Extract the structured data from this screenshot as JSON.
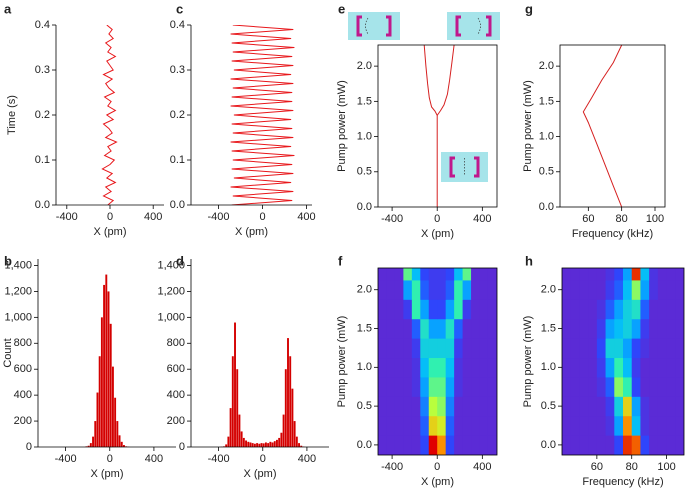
{
  "chart_data": [
    {
      "type": "line",
      "label": "a",
      "ylabel": "Time (s)",
      "xlabel": "X (pm)",
      "xlim": [
        -500,
        500
      ],
      "xticks": [
        -400,
        0,
        400
      ],
      "ylim": [
        0,
        0.4
      ],
      "yticks": [
        {
          "value": 0,
          "label": "0.0"
        },
        0.1,
        0.2,
        0.3,
        0.4
      ],
      "box": false,
      "series": [
        {
          "color": "#e8171b",
          "x": [
            -20,
            30,
            -60,
            10,
            -40,
            50,
            -30,
            20,
            -70,
            0,
            40,
            -50,
            10,
            -20,
            60,
            -40,
            20,
            -10,
            -60,
            30,
            -30,
            50,
            -20,
            10,
            -50,
            40,
            -10,
            -40,
            20,
            -60,
            30,
            0,
            -30,
            50,
            -20,
            10,
            -40,
            30,
            -10,
            20,
            -30
          ],
          "y": [
            0,
            0.01,
            0.02,
            0.03,
            0.04,
            0.05,
            0.06,
            0.07,
            0.08,
            0.09,
            0.1,
            0.11,
            0.12,
            0.13,
            0.14,
            0.15,
            0.16,
            0.17,
            0.18,
            0.19,
            0.2,
            0.21,
            0.22,
            0.23,
            0.24,
            0.25,
            0.26,
            0.27,
            0.28,
            0.29,
            0.3,
            0.31,
            0.32,
            0.33,
            0.34,
            0.35,
            0.36,
            0.37,
            0.38,
            0.39,
            0.4
          ]
        }
      ]
    },
    {
      "type": "histogram",
      "label": "b",
      "ylabel": "Count",
      "xlabel": "X (pm)",
      "xlim": [
        -650,
        600
      ],
      "xticks": [
        -400,
        0,
        400
      ],
      "ylim": [
        0,
        1450
      ],
      "yticks": [
        0,
        200,
        400,
        600,
        800,
        {
          "value": 1000,
          "label": "1,000"
        },
        {
          "value": 1200,
          "label": "1,200"
        },
        {
          "value": 1400,
          "label": "1,400"
        }
      ],
      "box": false,
      "color": "#d40000",
      "bins": [
        -220,
        -200,
        -180,
        -160,
        -140,
        -120,
        -100,
        -80,
        -60,
        -40,
        -20,
        0,
        20,
        40,
        60,
        80,
        100,
        120,
        140,
        160,
        180
      ],
      "values": [
        5,
        10,
        30,
        80,
        200,
        420,
        700,
        1000,
        1250,
        1330,
        1200,
        950,
        620,
        380,
        200,
        90,
        40,
        15,
        5,
        2
      ]
    },
    {
      "type": "line",
      "label": "c",
      "xlabel": "X (pm)",
      "xlim": [
        -650,
        450
      ],
      "xticks": [
        -400,
        0,
        400
      ],
      "ylim": [
        0,
        0.4
      ],
      "yticks": [
        {
          "value": 0,
          "label": "0.0"
        },
        0.1,
        0.2,
        0.3,
        0.4
      ],
      "box": false,
      "series": [
        {
          "color": "#e8171b",
          "x": [
            -280,
            270,
            -270,
            280,
            -290,
            260,
            -260,
            280,
            -280,
            270,
            -270,
            290,
            -280,
            260,
            -290,
            280,
            -270,
            270,
            -280,
            260,
            -260,
            280,
            -290,
            270,
            -280,
            270,
            -270,
            280,
            -290,
            260,
            -260,
            280,
            -280,
            270,
            -270,
            290,
            -280,
            260,
            -290,
            280,
            -270
          ],
          "y": [
            0,
            0.01,
            0.02,
            0.03,
            0.04,
            0.05,
            0.06,
            0.07,
            0.08,
            0.09,
            0.1,
            0.11,
            0.12,
            0.13,
            0.14,
            0.15,
            0.16,
            0.17,
            0.18,
            0.19,
            0.2,
            0.21,
            0.22,
            0.23,
            0.24,
            0.25,
            0.26,
            0.27,
            0.28,
            0.29,
            0.3,
            0.31,
            0.32,
            0.33,
            0.34,
            0.35,
            0.36,
            0.37,
            0.38,
            0.39,
            0.4
          ]
        }
      ]
    },
    {
      "type": "histogram",
      "label": "d",
      "xlabel": "X (pm)",
      "xlim": [
        -650,
        600
      ],
      "xticks": [
        -400,
        0,
        400
      ],
      "ylim": [
        0,
        1450
      ],
      "yticks": [
        0,
        200,
        400,
        600,
        800,
        {
          "value": 1000,
          "label": "1,000"
        },
        {
          "value": 1200,
          "label": "1,200"
        },
        {
          "value": 1400,
          "label": "1,400"
        }
      ],
      "box": false,
      "color": "#d40000",
      "bins": [
        -400,
        -380,
        -360,
        -340,
        -320,
        -300,
        -280,
        -260,
        -240,
        -220,
        -200,
        -180,
        -160,
        -140,
        -120,
        -100,
        -80,
        -60,
        -40,
        -20,
        0,
        20,
        40,
        60,
        80,
        100,
        120,
        140,
        160,
        180,
        200,
        220,
        240,
        260,
        280,
        300,
        320,
        340,
        360,
        380,
        400
      ],
      "values": [
        0,
        2,
        5,
        20,
        80,
        300,
        700,
        960,
        600,
        250,
        120,
        70,
        50,
        40,
        35,
        30,
        25,
        30,
        25,
        30,
        28,
        35,
        30,
        40,
        35,
        45,
        55,
        70,
        110,
        250,
        600,
        840,
        700,
        450,
        200,
        80,
        30,
        10,
        3,
        0
      ]
    },
    {
      "type": "line",
      "label": "e",
      "ylabel": "Pump power (mW)",
      "xlabel": "X (pm)",
      "xlim": [
        -525,
        530
      ],
      "xticks": [
        -400,
        0,
        400
      ],
      "ylim": [
        0,
        2.3
      ],
      "yticks": [
        {
          "value": 0,
          "label": "0.0"
        },
        0.5,
        {
          "value": 1,
          "label": "1.0"
        },
        1.5,
        {
          "value": 2,
          "label": "2.0"
        }
      ],
      "box": true,
      "series": [
        {
          "color": "#d62020",
          "x": [
            0,
            0,
            -20,
            -50,
            -70,
            -85,
            -100,
            -115
          ],
          "y": [
            0,
            1.3,
            1.36,
            1.42,
            1.55,
            1.75,
            2.0,
            2.3
          ]
        },
        {
          "color": "#d62020",
          "x": [
            0,
            30,
            60,
            90,
            110,
            130,
            150
          ],
          "y": [
            1.3,
            1.37,
            1.45,
            1.6,
            1.8,
            2.05,
            2.3
          ]
        }
      ]
    },
    {
      "type": "heatmap",
      "label": "f",
      "ylabel": "Pump power (mW)",
      "xlabel": "X (pm)",
      "xlim": [
        -525,
        530
      ],
      "xticks": [
        -400,
        0,
        400
      ],
      "ylim": [
        -0.13,
        2.28
      ],
      "yticks": [
        {
          "value": 0,
          "label": "0.0"
        },
        0.5,
        {
          "value": 1,
          "label": "1.0"
        },
        1.5,
        {
          "value": 2,
          "label": "2.0"
        }
      ],
      "box": true,
      "colormap": [
        "#5b2bd6",
        "#2a48ff",
        "#00b8ff",
        "#30f0b0",
        "#c8ff30",
        "#ffa000",
        "#e00000"
      ],
      "zlim": [
        0,
        1
      ],
      "x": [
        -562.5,
        -487.5,
        -412.5,
        -337.5,
        -262.5,
        -187.5,
        -112.5,
        -37.5,
        37.5,
        112.5,
        187.5,
        262.5,
        337.5,
        412.5,
        487.5,
        562.5
      ],
      "y": [
        0,
        0.25,
        0.5,
        0.75,
        1.0,
        1.25,
        1.5,
        1.75,
        2.0,
        2.25
      ],
      "z": [
        [
          0,
          0,
          0,
          0,
          0,
          0,
          0.15,
          1.0,
          0.85,
          0.15,
          0,
          0,
          0,
          0,
          0,
          0
        ],
        [
          0,
          0,
          0,
          0,
          0,
          0,
          0.2,
          0.75,
          0.7,
          0.2,
          0,
          0,
          0,
          0,
          0,
          0
        ],
        [
          0,
          0,
          0,
          0,
          0,
          0,
          0.25,
          0.65,
          0.6,
          0.25,
          0,
          0,
          0,
          0,
          0,
          0
        ],
        [
          0,
          0,
          0,
          0,
          0,
          0.05,
          0.3,
          0.55,
          0.55,
          0.3,
          0.05,
          0,
          0,
          0,
          0,
          0
        ],
        [
          0,
          0,
          0,
          0,
          0,
          0.05,
          0.35,
          0.5,
          0.5,
          0.35,
          0.05,
          0,
          0,
          0,
          0,
          0
        ],
        [
          0,
          0,
          0,
          0,
          0,
          0.1,
          0.4,
          0.4,
          0.4,
          0.4,
          0.1,
          0,
          0,
          0,
          0,
          0
        ],
        [
          0,
          0,
          0,
          0,
          0,
          0.2,
          0.45,
          0.3,
          0.3,
          0.45,
          0.2,
          0,
          0,
          0,
          0,
          0
        ],
        [
          0,
          0,
          0,
          0,
          0.1,
          0.5,
          0.3,
          0.15,
          0.15,
          0.3,
          0.5,
          0.1,
          0,
          0,
          0,
          0
        ],
        [
          0,
          0,
          0,
          0,
          0.3,
          0.5,
          0.2,
          0.1,
          0.1,
          0.2,
          0.5,
          0.3,
          0,
          0,
          0,
          0
        ],
        [
          0,
          0,
          0,
          0,
          0.55,
          0.35,
          0.15,
          0.1,
          0.1,
          0.15,
          0.35,
          0.55,
          0,
          0,
          0,
          0
        ]
      ]
    },
    {
      "type": "line",
      "label": "g",
      "ylabel": "Pump power (mW)",
      "xlabel": "Frequency (kHz)",
      "xlim": [
        43,
        106
      ],
      "xticks": [
        60,
        80,
        100
      ],
      "ylim": [
        0,
        2.3
      ],
      "yticks": [
        {
          "value": 0,
          "label": "0.0"
        },
        0.5,
        {
          "value": 1,
          "label": "1.0"
        },
        1.5,
        {
          "value": 2,
          "label": "2.0"
        }
      ],
      "box": true,
      "series": [
        {
          "color": "#d62020",
          "x": [
            80,
            75,
            70,
            65,
            60,
            57,
            62,
            68,
            75,
            80
          ],
          "y": [
            0,
            0.3,
            0.6,
            0.9,
            1.2,
            1.35,
            1.55,
            1.8,
            2.05,
            2.3
          ]
        }
      ]
    },
    {
      "type": "heatmap",
      "label": "h",
      "ylabel": "Pump power (mW)",
      "xlabel": "Frequency (kHz)",
      "xlim": [
        40,
        110
      ],
      "xticks": [
        60,
        80,
        100
      ],
      "ylim": [
        -0.13,
        2.28
      ],
      "yticks": [
        {
          "value": 0,
          "label": "0.0"
        },
        0.5,
        {
          "value": 1,
          "label": "1.0"
        },
        1.5,
        {
          "value": 2,
          "label": "2.0"
        }
      ],
      "box": true,
      "colormap": [
        "#5b2bd6",
        "#2a48ff",
        "#00b8ff",
        "#30f0b0",
        "#c8ff30",
        "#ffa000",
        "#e00000"
      ],
      "zlim": [
        0,
        1
      ],
      "x": [
        42.5,
        47.5,
        52.5,
        57.5,
        62.5,
        67.5,
        72.5,
        77.5,
        82.5,
        87.5,
        92.5,
        97.5,
        102.5,
        107.5
      ],
      "y": [
        0,
        0.25,
        0.5,
        0.75,
        1.0,
        1.25,
        1.5,
        1.75,
        2.0,
        2.25
      ],
      "z": [
        [
          0,
          0,
          0,
          0,
          0,
          0,
          0.15,
          0.95,
          0.9,
          0.15,
          0,
          0,
          0,
          0
        ],
        [
          0,
          0,
          0,
          0,
          0,
          0.05,
          0.3,
          0.85,
          0.35,
          0.05,
          0,
          0,
          0,
          0
        ],
        [
          0,
          0,
          0,
          0,
          0,
          0.1,
          0.4,
          0.75,
          0.3,
          0.05,
          0,
          0,
          0,
          0
        ],
        [
          0,
          0,
          0,
          0,
          0.05,
          0.2,
          0.6,
          0.5,
          0.15,
          0,
          0,
          0,
          0,
          0
        ],
        [
          0,
          0,
          0,
          0,
          0.1,
          0.3,
          0.5,
          0.35,
          0.1,
          0,
          0,
          0,
          0,
          0
        ],
        [
          0,
          0,
          0,
          0,
          0.15,
          0.4,
          0.4,
          0.3,
          0.15,
          0.05,
          0,
          0,
          0,
          0
        ],
        [
          0,
          0,
          0,
          0,
          0.1,
          0.3,
          0.35,
          0.4,
          0.3,
          0.1,
          0,
          0,
          0,
          0
        ],
        [
          0,
          0,
          0,
          0,
          0.05,
          0.2,
          0.3,
          0.4,
          0.45,
          0.2,
          0,
          0,
          0,
          0
        ],
        [
          0,
          0,
          0,
          0,
          0,
          0.1,
          0.2,
          0.35,
          0.6,
          0.3,
          0.05,
          0,
          0,
          0
        ],
        [
          0,
          0,
          0,
          0,
          0,
          0.05,
          0.15,
          0.3,
          0.95,
          0.35,
          0.05,
          0,
          0,
          0
        ]
      ]
    }
  ]
}
